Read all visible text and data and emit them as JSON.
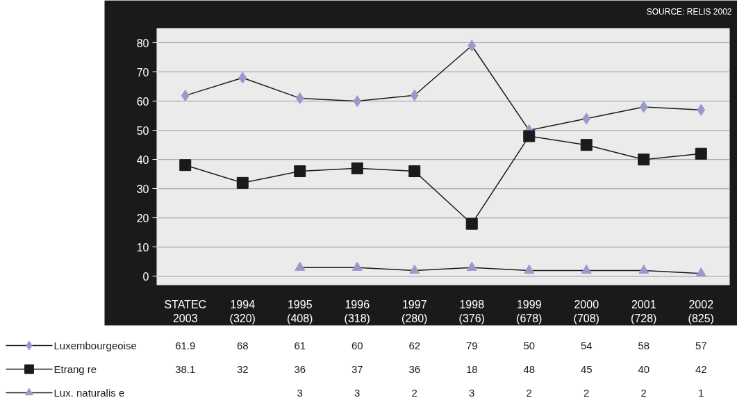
{
  "chart_data": {
    "type": "line",
    "categories": [
      "STATEC\n2003",
      "1994\n(320)",
      "1995\n(408)",
      "1996\n(318)",
      "1997\n(280)",
      "1998\n(376)",
      "1999\n(678)",
      "2000\n(708)",
      "2001\n(728)",
      "2002\n(825)"
    ],
    "series": [
      {
        "name": "Luxembourgeoise",
        "color": "#9999cc",
        "marker": "diamond",
        "values": [
          61.9,
          68,
          61,
          60,
          62,
          79,
          50,
          54,
          58,
          57
        ]
      },
      {
        "name": "Etrang re",
        "color": "#1a1a1a",
        "marker": "square",
        "values": [
          38.1,
          32,
          36,
          37,
          36,
          18,
          48,
          45,
          40,
          42
        ]
      },
      {
        "name": "Lux. naturalis e",
        "color": "#9999cc",
        "marker": "triangle",
        "values": [
          null,
          null,
          3,
          3,
          2,
          3,
          2,
          2,
          2,
          1
        ]
      }
    ],
    "ylim": [
      -3,
      85
    ],
    "yticks": [
      0,
      10,
      20,
      30,
      40,
      50,
      60,
      70,
      80
    ],
    "grid": "y",
    "legend": "bottom left",
    "data_labels": true,
    "annotations": [
      "SOURCE: RELIS 2002"
    ]
  }
}
